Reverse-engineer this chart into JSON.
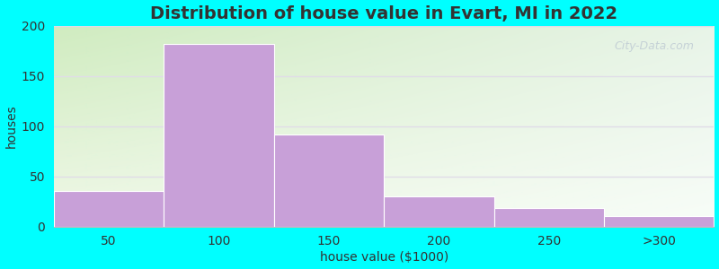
{
  "title": "Distribution of house value in Evart, MI in 2022",
  "xlabel": "house value ($1000)",
  "ylabel": "houses",
  "categories": [
    "50",
    "100",
    "150",
    "200",
    "250",
    ">300"
  ],
  "values": [
    35,
    182,
    92,
    30,
    18,
    10
  ],
  "bar_color": "#c8a0d8",
  "bar_edge_color": "#ffffff",
  "ylim": [
    0,
    200
  ],
  "yticks": [
    0,
    50,
    100,
    150,
    200
  ],
  "outer_bg_color": "#00ffff",
  "bg_top_left": "#d0ecc0",
  "bg_top_right": "#e8f4e8",
  "bg_bottom_left": "#f0f8e8",
  "bg_bottom_right": "#f8fdf8",
  "title_fontsize": 14,
  "label_fontsize": 10,
  "tick_fontsize": 10,
  "grid_color": "#e0dce8",
  "text_color": "#333333",
  "watermark_color": "#c0ccd4"
}
